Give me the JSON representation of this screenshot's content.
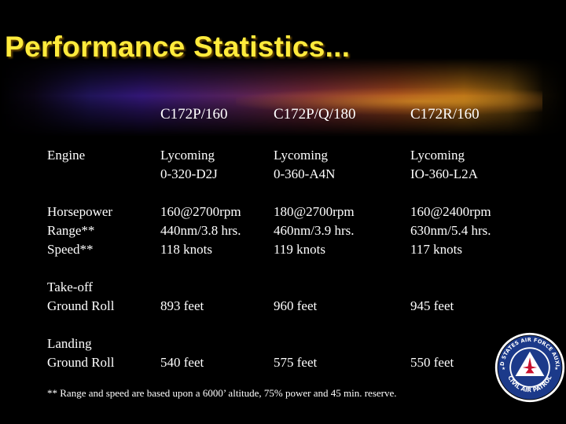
{
  "title": "Performance Statistics...",
  "columns": [
    "",
    "C172P/160",
    "C172P/Q/180",
    "C172R/160"
  ],
  "rows": [
    {
      "label": [
        "Engine"
      ],
      "values": [
        [
          "Lycoming",
          "0-320-D2J"
        ],
        [
          "Lycoming",
          "0-360-A4N"
        ],
        [
          "Lycoming",
          "IO-360-L2A"
        ]
      ]
    },
    {
      "label": [
        "Horsepower",
        "Range**",
        "Speed**"
      ],
      "values": [
        [
          "160@2700rpm",
          "440nm/3.8 hrs.",
          "118 knots"
        ],
        [
          "180@2700rpm",
          "460nm/3.9 hrs.",
          "119 knots"
        ],
        [
          "160@2400rpm",
          "630nm/5.4 hrs.",
          "117 knots"
        ]
      ]
    },
    {
      "label": [
        "Take-off",
        "Ground Roll"
      ],
      "values": [
        [
          "893 feet"
        ],
        [
          "960 feet"
        ],
        [
          "945 feet"
        ]
      ]
    },
    {
      "label": [
        "Landing",
        "Ground Roll"
      ],
      "values": [
        [
          "540 feet"
        ],
        [
          "575 feet"
        ],
        [
          "550 feet"
        ]
      ]
    }
  ],
  "footnote": "** Range and speed are based upon a 6000’ altitude, 75% power and 45 min. reserve.",
  "seal": {
    "top_text": "UNITED STATES AIR FORCE AUXILIARY",
    "bottom_text": "CIVIL AIR PATROL",
    "icon": "civil-air-patrol-seal-icon"
  },
  "colors": {
    "background": "#000000",
    "title": "#ffeb3c",
    "text": "#ffffff",
    "seal_blue": "#1c3a8a",
    "seal_red": "#c8102e"
  }
}
